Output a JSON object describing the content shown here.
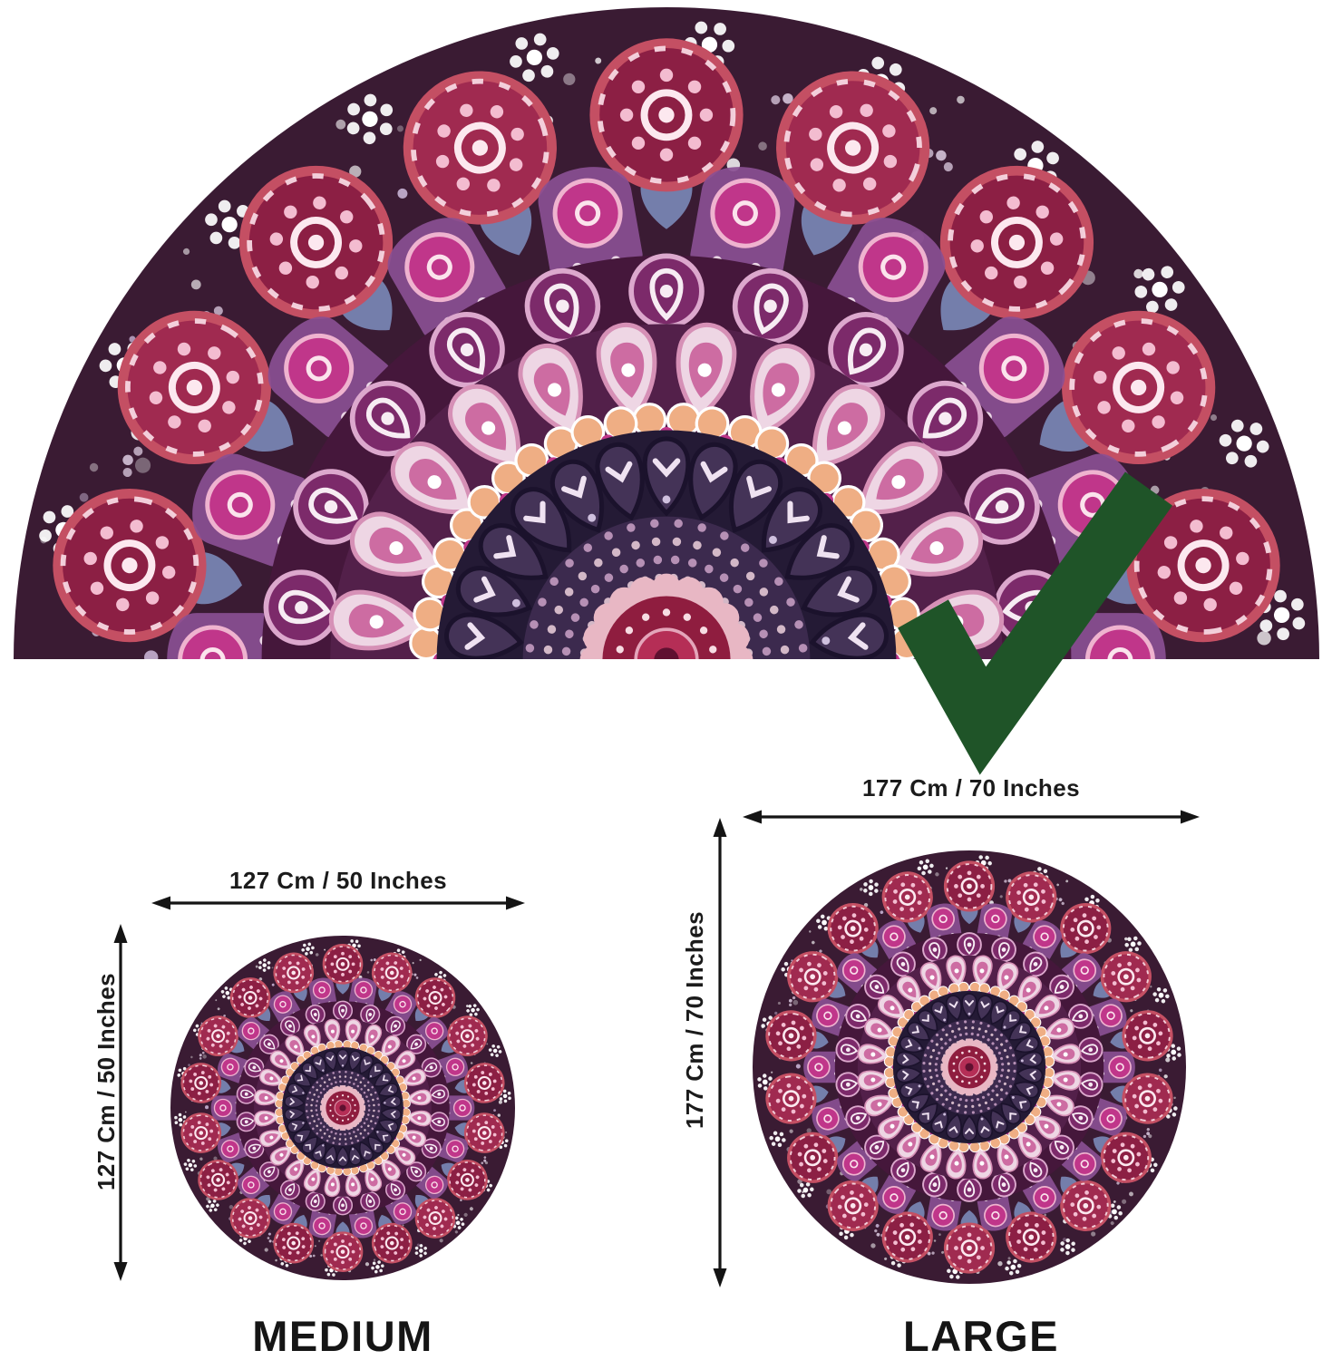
{
  "sizes": [
    {
      "id": "medium",
      "label": "MEDIUM",
      "width_label": "127 Cm / 50 Inches",
      "height_label": "127 Cm / 50 Inches"
    },
    {
      "id": "large",
      "label": "LARGE",
      "width_label": "177 Cm / 70 Inches",
      "height_label": "177 Cm / 70 Inches"
    }
  ],
  "colors": {
    "checkmark_green": "#1f5428",
    "dimension_text": "#1b1b1b",
    "arrow_black": "#141414",
    "size_label_text": "#151515",
    "mandala": {
      "outer_bg": "#3a1b33",
      "rosette_red": "#a02a50",
      "rosette_dark": "#8c1f44",
      "rosette_edge": "#c44f63",
      "arch_mauve": "#8a4f92",
      "slate_blue": "#7b89b8",
      "magenta": "#c0368a",
      "purple_medallion": "#7c2a6a",
      "mid_band_bg": "#45173b",
      "light_band_bg": "#53204a",
      "light_petal": "#eed6e4",
      "light_petal_edge": "#d690b6",
      "petal_core": "#c9619a",
      "peach": "#efae84",
      "navy_band_bg": "#241a35",
      "navy_feather": "#443357",
      "inner_disc": "#3c2a4e",
      "scallop": "#e8b7c4",
      "center_ring": "#8f1d3f",
      "center_core": "#b52e56",
      "center_dot": "#5f1030"
    }
  }
}
